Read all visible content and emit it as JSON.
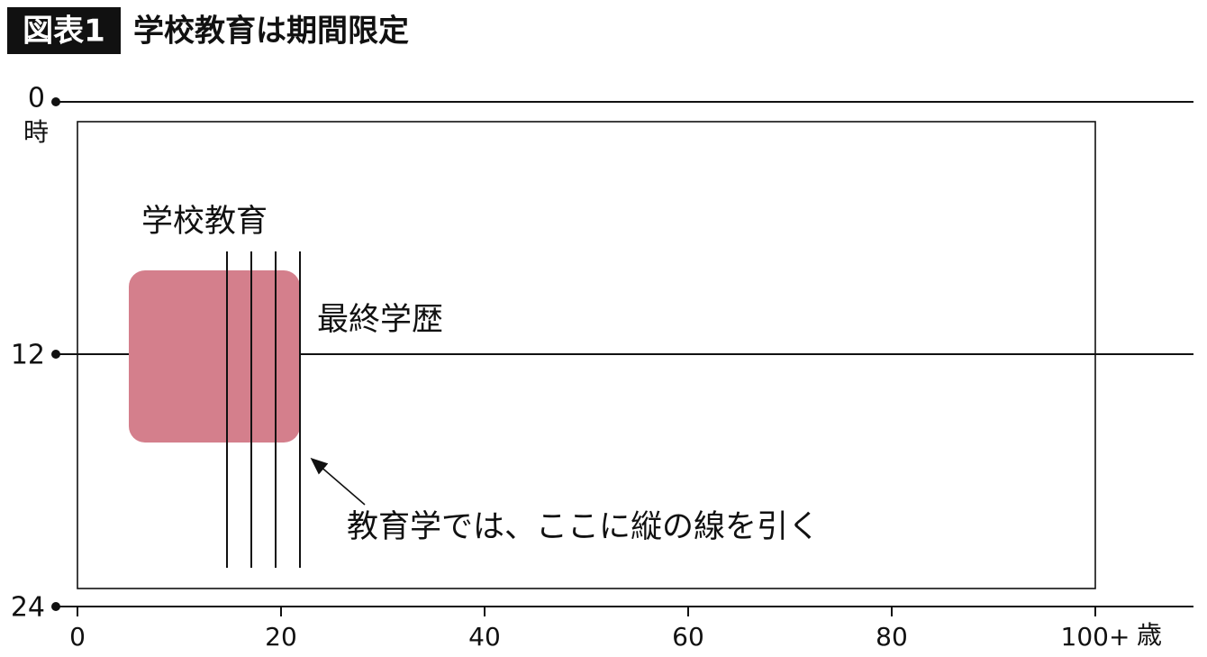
{
  "header": {
    "badge": "図表1",
    "title": "学校教育は期間限定"
  },
  "y_axis": {
    "ticks": [
      "0",
      "12",
      "24"
    ],
    "unit": "時"
  },
  "x_axis": {
    "ticks": [
      "0",
      "20",
      "40",
      "60",
      "80",
      "100+"
    ],
    "unit": "歳"
  },
  "labels": {
    "school": "学校教育",
    "final": "最終学歴",
    "annotation": "教育学では、ここに縦の線を引く"
  }
}
